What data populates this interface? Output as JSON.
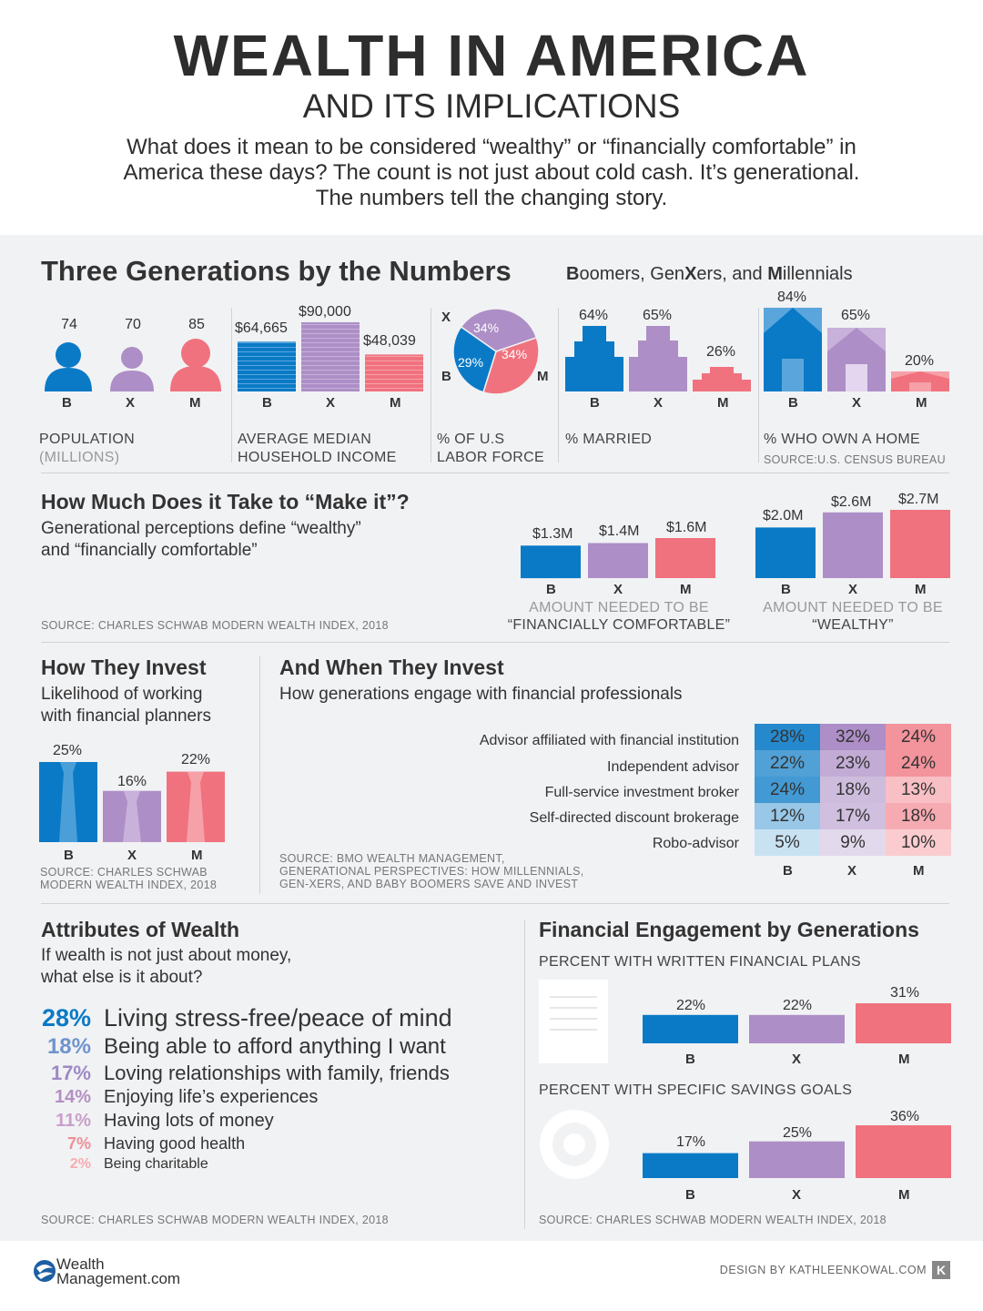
{
  "header": {
    "title": "WEALTH IN AMERICA",
    "subtitle": "AND ITS IMPLICATIONS",
    "intro_1": "What does it mean to be considered “wealthy” or “financially comfortable” in",
    "intro_2": "America these days? The count is not just about cold cash. It’s generational.",
    "intro_3": "The numbers tell the changing story."
  },
  "colors": {
    "b": "#0a7ac6",
    "x": "#ad8ec6",
    "m": "#f0727e",
    "panel": "#f1f2f4"
  },
  "gen_labels": [
    "B",
    "X",
    "M"
  ],
  "section1": {
    "title": "Three Generations by the Numbers",
    "tag_B": "B",
    "tag_oomers": "oomers, Gen",
    "tag_X": "X",
    "tag_ers": "ers, and ",
    "tag_M": "M",
    "tag_illennials": "illennials",
    "population": {
      "cap1": "POPULATION",
      "cap2": "(MILLIONS)"
    },
    "income": {
      "cap1": "AVERAGE MEDIAN",
      "cap2": "HOUSEHOLD INCOME"
    },
    "labor": {
      "cap1": "% OF U.S",
      "cap2": "LABOR FORCE"
    },
    "married": {
      "cap1": "% MARRIED"
    },
    "home": {
      "cap1": "% WHO OWN A HOME",
      "source": "SOURCE:U.S. CENSUS BUREAU"
    }
  },
  "section2": {
    "title": "How Much Does it Take to “Make it”?",
    "sub1": "Generational perceptions define “wealthy”",
    "sub2": "and “financially comfortable”",
    "source": "SOURCE: CHARLES SCHWAB MODERN WEALTH INDEX, 2018",
    "comfortable_cap1": "AMOUNT NEEDED TO BE",
    "comfortable_cap2": "“FINANCIALLY COMFORTABLE”",
    "wealthy_cap1": "AMOUNT NEEDED TO BE",
    "wealthy_cap2": "“WEALTHY”"
  },
  "section3": {
    "title": "How They Invest",
    "sub1": "Likelihood of working",
    "sub2": "with financial planners",
    "source1": "SOURCE: CHARLES SCHWAB",
    "source2": "MODERN WEALTH INDEX, 2018"
  },
  "section4": {
    "title": "And When They Invest",
    "sub": "How generations engage with financial professionals",
    "source1": "SOURCE: BMO WEALTH MANAGEMENT,",
    "source2": "GENERATIONAL PERSPECTIVES: HOW MILLENNIALS,",
    "source3": "GEN-XERS, AND BABY BOOMERS SAVE AND INVEST"
  },
  "section5": {
    "title": "Attributes of Wealth",
    "sub1": "If wealth is not just about money,",
    "sub2": "what else is it about?",
    "source": "SOURCE: CHARLES SCHWAB MODERN WEALTH INDEX, 2018"
  },
  "section6": {
    "title": "Financial Engagement by Generations",
    "plans_cap": "PERCENT WITH WRITTEN FINANCIAL PLANS",
    "goals_cap": "PERCENT WITH SPECIFIC SAVINGS GOALS",
    "source": "SOURCE: CHARLES SCHWAB MODERN WEALTH INDEX, 2018",
    "plan_icon": "document-icon",
    "goal_icon": "target-icon"
  },
  "footer": {
    "logo_line1": "Wealth",
    "logo_line2": "Management.com",
    "credit": "DESIGN BY KATHLEENKOWAL.COM",
    "credit_badge": "K"
  },
  "chart_data": [
    {
      "type": "bar",
      "categories": [
        "B",
        "X",
        "M"
      ],
      "values": [
        74,
        70,
        85
      ],
      "labels": [
        "74",
        "70",
        "85"
      ]
    },
    {
      "type": "bar",
      "categories": [
        "B",
        "X",
        "M"
      ],
      "values": [
        64665,
        90000,
        48039
      ],
      "labels": [
        "$64,665",
        "$90,000",
        "$48,039"
      ]
    },
    {
      "type": "pie",
      "categories": [
        "B",
        "X",
        "M"
      ],
      "values": [
        29,
        34,
        34
      ],
      "labels": [
        "29%",
        "34%",
        "34%"
      ]
    },
    {
      "type": "bar",
      "categories": [
        "B",
        "X",
        "M"
      ],
      "values": [
        64,
        65,
        26
      ],
      "labels": [
        "64%",
        "65%",
        "26%"
      ]
    },
    {
      "type": "bar",
      "categories": [
        "B",
        "X",
        "M"
      ],
      "values": [
        84,
        65,
        20
      ],
      "labels": [
        "84%",
        "65%",
        "20%"
      ]
    },
    {
      "type": "bar",
      "categories": [
        "B",
        "X",
        "M"
      ],
      "values": [
        1.3,
        1.4,
        1.6
      ],
      "labels": [
        "$1.3M",
        "$1.4M",
        "$1.6M"
      ]
    },
    {
      "type": "bar",
      "categories": [
        "B",
        "X",
        "M"
      ],
      "values": [
        2.0,
        2.6,
        2.7
      ],
      "labels": [
        "$2.0M",
        "$2.6M",
        "$2.7M"
      ]
    },
    {
      "type": "bar",
      "categories": [
        "B",
        "X",
        "M"
      ],
      "values": [
        25,
        16,
        22
      ],
      "labels": [
        "25%",
        "16%",
        "22%"
      ]
    },
    {
      "type": "heatmap",
      "rows": [
        "Advisor affiliated with financial institution",
        "Independent advisor",
        "Full-service investment broker",
        "Self-directed discount brokerage",
        "Robo-advisor"
      ],
      "columns": [
        "B",
        "X",
        "M"
      ],
      "values": [
        [
          28,
          32,
          24
        ],
        [
          22,
          23,
          24
        ],
        [
          24,
          18,
          13
        ],
        [
          12,
          17,
          18
        ],
        [
          5,
          9,
          10
        ]
      ],
      "labels": [
        [
          "28%",
          "32%",
          "24%"
        ],
        [
          "22%",
          "23%",
          "24%"
        ],
        [
          "24%",
          "18%",
          "13%"
        ],
        [
          "12%",
          "17%",
          "18%"
        ],
        [
          "5%",
          "9%",
          "10%"
        ]
      ]
    },
    {
      "type": "table",
      "rows": [
        {
          "pct": "28%",
          "text": "Living stress-free/peace of mind"
        },
        {
          "pct": "18%",
          "text": "Being able to afford anything I want"
        },
        {
          "pct": "17%",
          "text": "Loving relationships with family, friends"
        },
        {
          "pct": "14%",
          "text": "Enjoying life’s experiences"
        },
        {
          "pct": "11%",
          "text": "Having lots of money"
        },
        {
          "pct": "7%",
          "text": "Having good health"
        },
        {
          "pct": "2%",
          "text": "Being charitable"
        }
      ]
    },
    {
      "type": "bar",
      "categories": [
        "B",
        "X",
        "M"
      ],
      "values": [
        22,
        22,
        31
      ],
      "labels": [
        "22%",
        "22%",
        "31%"
      ]
    },
    {
      "type": "bar",
      "categories": [
        "B",
        "X",
        "M"
      ],
      "values": [
        17,
        25,
        36
      ],
      "labels": [
        "17%",
        "25%",
        "36%"
      ]
    }
  ]
}
